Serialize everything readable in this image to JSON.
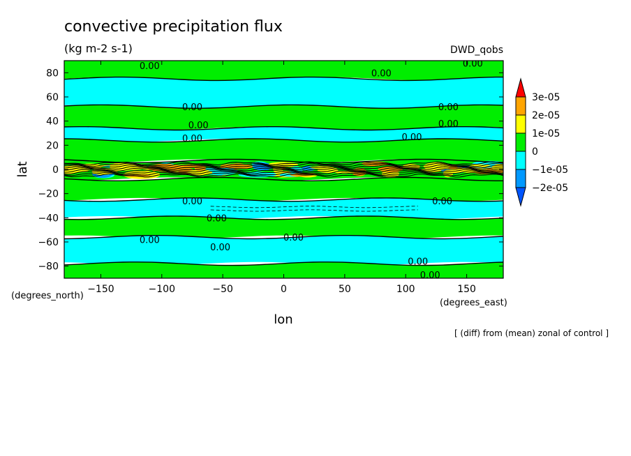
{
  "chart_data": {
    "type": "contour",
    "title": "convective precipitation flux",
    "units": "(kg m-2 s-1)",
    "dataset_label": "DWD_qobs",
    "xlabel": "lon",
    "ylabel": "lat",
    "x_unit_label": "(degrees_east)",
    "y_unit_label": "(degrees_north)",
    "footnote": "[ (diff) from (mean) zonal of control ]",
    "xlim": [
      -180,
      180
    ],
    "ylim": [
      -90,
      90
    ],
    "x_ticks": [
      -150,
      -100,
      -50,
      0,
      50,
      100,
      150
    ],
    "y_ticks": [
      -80,
      -60,
      -40,
      -20,
      0,
      20,
      40,
      60,
      80
    ],
    "colorbar": {
      "levels": [
        "3e-05",
        "2e-05",
        "1e-05",
        "0",
        "−1e-05",
        "−2e-05"
      ],
      "colors": [
        "#ff0000",
        "#ffa500",
        "#ffff00",
        "#00ee00",
        "#00ffff",
        "#0099ff",
        "#0055ff"
      ]
    },
    "bands": [
      {
        "lat": [
          75,
          90
        ],
        "value": "0 to 1e-05",
        "color": "#00ee00"
      },
      {
        "lat": [
          52,
          75
        ],
        "value": "-1e-05 to 0",
        "color": "#00ffff"
      },
      {
        "lat": [
          34,
          52
        ],
        "value": "0 to 1e-05",
        "color": "#00ee00"
      },
      {
        "lat": [
          24,
          34
        ],
        "value": "-1e-05 to 0",
        "color": "#00ffff"
      },
      {
        "lat": [
          7,
          24
        ],
        "value": "0 to 1e-05",
        "color": "#00ee00"
      },
      {
        "lat": [
          -8,
          7
        ],
        "value": "mixed -2e-05 to 3e-05",
        "color": "#00ee00"
      },
      {
        "lat": [
          -25,
          -8
        ],
        "value": "0 to 1e-05",
        "color": "#00ee00"
      },
      {
        "lat": [
          -40,
          -25
        ],
        "value": "-1e-05 to 0",
        "color": "#00ffff"
      },
      {
        "lat": [
          -56,
          -40
        ],
        "value": "0 to 1e-05",
        "color": "#00ee00"
      },
      {
        "lat": [
          -78,
          -56
        ],
        "value": "-1e-05 to 0",
        "color": "#00ffff"
      },
      {
        "lat": [
          -90,
          -78
        ],
        "value": "0 to 1e-05",
        "color": "#00ee00"
      }
    ],
    "contour_labels": [
      {
        "text": "0.00",
        "lon": -110,
        "lat": 86
      },
      {
        "text": "0.00",
        "lon": 80,
        "lat": 80
      },
      {
        "text": "0.00",
        "lon": 155,
        "lat": 88
      },
      {
        "text": "0.00",
        "lon": -75,
        "lat": 52
      },
      {
        "text": "0.00",
        "lon": 135,
        "lat": 52
      },
      {
        "text": "0.00",
        "lon": -70,
        "lat": 37
      },
      {
        "text": "0.00",
        "lon": 135,
        "lat": 38
      },
      {
        "text": "0.00",
        "lon": -75,
        "lat": 26
      },
      {
        "text": "0.00",
        "lon": 105,
        "lat": 27
      },
      {
        "text": "0.00",
        "lon": -75,
        "lat": -26
      },
      {
        "text": "0.00",
        "lon": 130,
        "lat": -26
      },
      {
        "text": "0.00",
        "lon": -55,
        "lat": -40
      },
      {
        "text": "0.00",
        "lon": 8,
        "lat": -56
      },
      {
        "text": "0.00",
        "lon": -110,
        "lat": -58
      },
      {
        "text": "0.00",
        "lon": -52,
        "lat": -64
      },
      {
        "text": "0.00",
        "lon": 110,
        "lat": -76
      },
      {
        "text": "0.00",
        "lon": 120,
        "lat": -87
      }
    ]
  }
}
